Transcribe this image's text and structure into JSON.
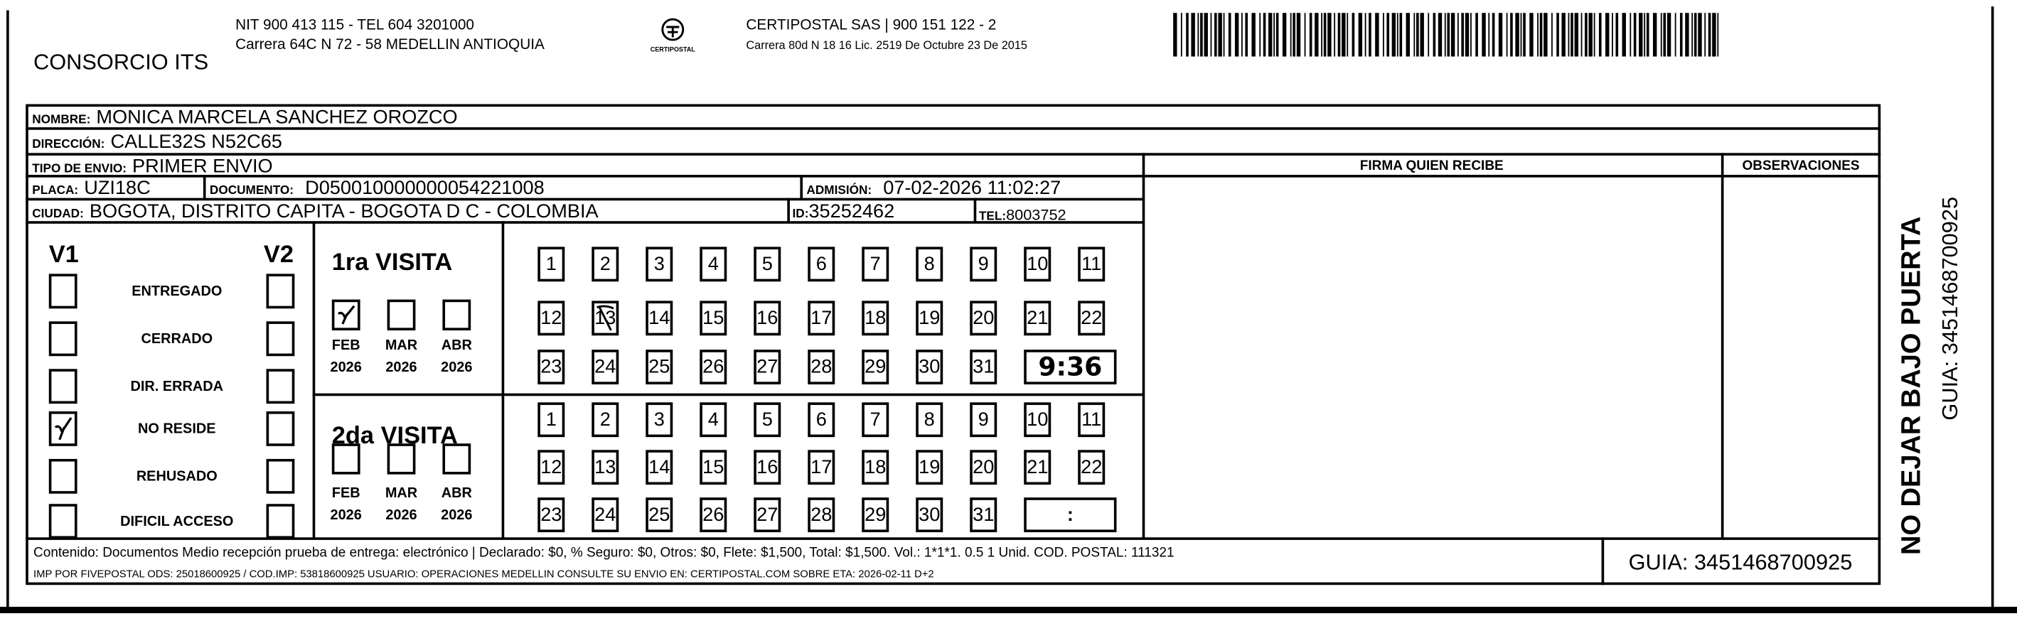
{
  "header": {
    "company": "CONSORCIO ITS",
    "company_line1": "NIT 900 413 115 - TEL 604 3201000",
    "company_line2": "Carrera 64C N 72 - 58 MEDELLIN ANTIOQUIA",
    "logo_text": "CERTIPOSTAL",
    "carrier_line1": "CERTIPOSTAL SAS | 900 151 122 - 2",
    "carrier_line2": "Carrera 80d N 18 16  Lic. 2519 De Octubre 23 De 2015",
    "barcode_value": "3451468700925"
  },
  "recipient": {
    "nombre_label": "NOMBRE:",
    "nombre": "MONICA MARCELA SANCHEZ OROZCO",
    "direccion_label": "DIRECCIÓN:",
    "direccion": "CALLE32S N52C65",
    "tipo_label": "TIPO DE ENVIO:",
    "tipo": "PRIMER ENVIO",
    "placa_label": "PLACA:",
    "placa": "UZI18C",
    "documento_label": "DOCUMENTO:",
    "documento": "D050010000000054221008",
    "admision_label": "ADMISIÓN:",
    "admision": "07-02-2026 11:02:27",
    "ciudad_label": "CIUDAD:",
    "ciudad": "BOGOTA, DISTRITO CAPITA - BOGOTA D C - COLOMBIA",
    "id_label": "ID:",
    "id": "35252462",
    "tel_label": "TEL:",
    "tel": "8003752"
  },
  "firma_header": "FIRMA QUIEN RECIBE",
  "observaciones_header": "OBSERVACIONES",
  "status": {
    "v1_label": "V1",
    "v2_label": "V2",
    "options": [
      {
        "label": "ENTREGADO",
        "v1": false,
        "v2": false
      },
      {
        "label": "CERRADO",
        "v1": false,
        "v2": false
      },
      {
        "label": "DIR. ERRADA",
        "v1": false,
        "v2": false
      },
      {
        "label": "NO RESIDE",
        "v1": true,
        "v2": false
      },
      {
        "label": "REHUSADO",
        "v1": false,
        "v2": false
      },
      {
        "label": "DIFICIL ACCESO",
        "v1": false,
        "v2": false
      }
    ]
  },
  "visits": [
    {
      "title": "1ra VISITA",
      "months": [
        {
          "month": "FEB",
          "year": "2026",
          "checked": true
        },
        {
          "month": "MAR",
          "year": "2026",
          "checked": false
        },
        {
          "month": "ABR",
          "year": "2026",
          "checked": false
        }
      ],
      "marked_day": 13,
      "time": "9:36"
    },
    {
      "title": "2da VISITA",
      "months": [
        {
          "month": "FEB",
          "year": "2026",
          "checked": false
        },
        {
          "month": "MAR",
          "year": "2026",
          "checked": false
        },
        {
          "month": "ABR",
          "year": "2026",
          "checked": false
        }
      ],
      "marked_day": null,
      "time": ":"
    }
  ],
  "days": [
    "1",
    "2",
    "3",
    "4",
    "5",
    "6",
    "7",
    "8",
    "9",
    "10",
    "11",
    "12",
    "13",
    "14",
    "15",
    "16",
    "17",
    "18",
    "19",
    "20",
    "21",
    "22",
    "23",
    "24",
    "25",
    "26",
    "27",
    "28",
    "29",
    "30",
    "31"
  ],
  "footer": {
    "line1": "Contenido: Documentos Medio recepción prueba de entrega: electrónico | Declarado: $0, % Seguro: $0, Otros: $0, Flete: $1,500, Total: $1,500. Vol.: 1*1*1. 0.5  1 Unid. COD. POSTAL: 111321",
    "line2": "IMP POR FIVEPOSTAL ODS: 25018600925 / COD.IMP: 53818600925 USUARIO: OPERACIONES MEDELLIN CONSULTE SU ENVIO EN: CERTIPOSTAL.COM SOBRE ETA: 2026-02-11 D+2",
    "guia": "GUIA: 3451468700925"
  },
  "side": {
    "warning": "NO DEJAR BAJO PUERTA",
    "guia": "GUIA: 3451468700925"
  }
}
